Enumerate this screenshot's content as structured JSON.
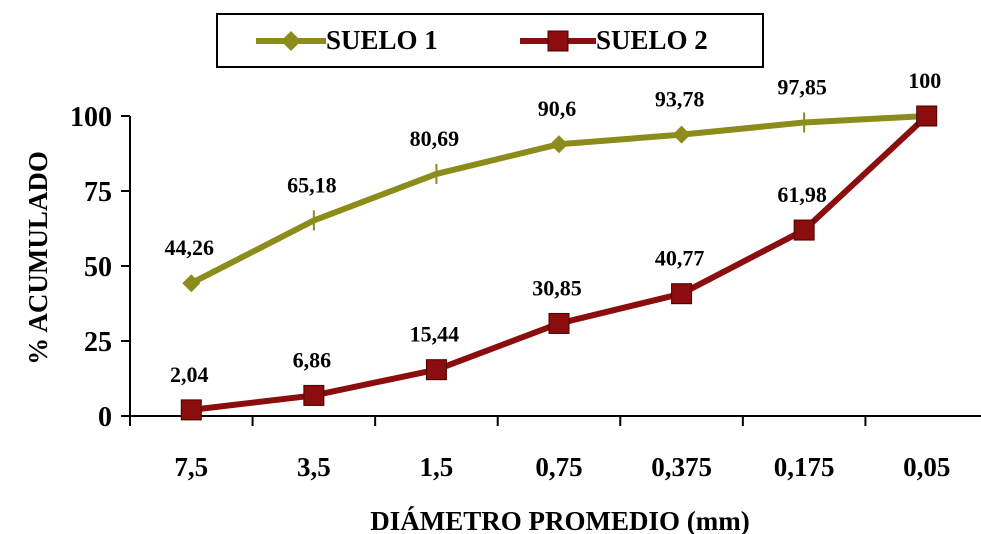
{
  "chart_data": {
    "type": "line",
    "categories": [
      "7,5",
      "3,5",
      "1,5",
      "0,75",
      "0,375",
      "0,175",
      "0,05"
    ],
    "xlabel": "DIÁMETRO PROMEDIO (mm)",
    "ylabel": "% ACUMULADO",
    "ylim": [
      0,
      100
    ],
    "yticks": [
      0,
      25,
      50,
      75,
      100
    ],
    "grid": false,
    "legend_position": "top",
    "series": [
      {
        "name": "SUELO 1",
        "color": "#8c8c1a",
        "marker": "diamond",
        "values": [
          44.26,
          65.18,
          80.69,
          90.6,
          93.78,
          97.85,
          100
        ],
        "labels": [
          "44,26",
          "65,18",
          "80,69",
          "90,6",
          "93,78",
          "97,85",
          "100"
        ]
      },
      {
        "name": "SUELO 2",
        "color": "#8b0d0d",
        "marker": "square",
        "values": [
          2.04,
          6.86,
          15.44,
          30.85,
          40.77,
          61.98,
          100
        ],
        "labels": [
          "2,04",
          "6,86",
          "15,44",
          "30,85",
          "40,77",
          "61,98",
          ""
        ]
      }
    ]
  }
}
